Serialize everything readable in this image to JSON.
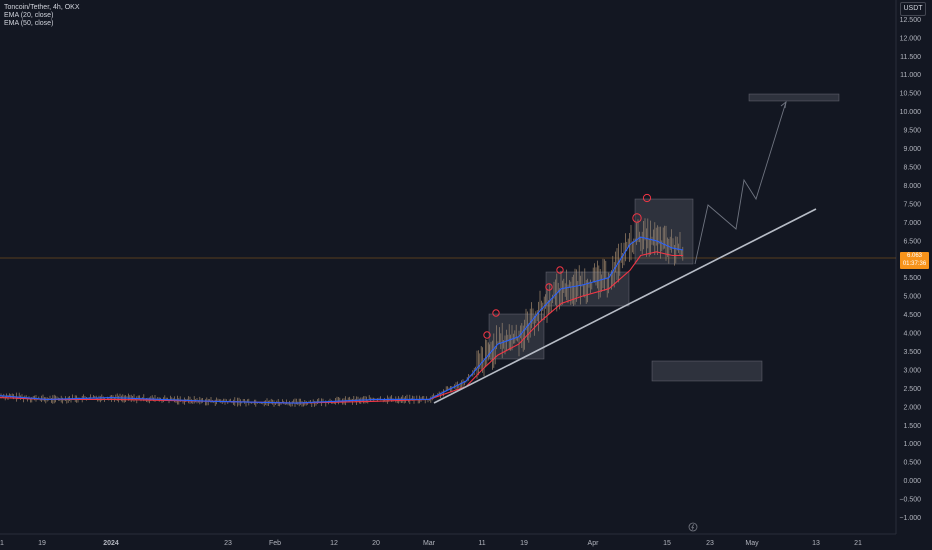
{
  "legend": {
    "symbol": "Toncoin/Tether, 4h, OKX",
    "ema20": "EMA (20, close)",
    "ema50": "EMA (50, close)"
  },
  "currency_button": "USDT",
  "price_tag": {
    "price": "6.063",
    "countdown": "01:37:36"
  },
  "colors": {
    "background": "#131722",
    "candle": "#a0866a",
    "ema20": "#2962ff",
    "ema50": "#f23645",
    "trendline": "#b7bcc6",
    "box": "#787b86",
    "circle": "#f23645",
    "projection": "#6f7480",
    "price_line": "#f7931a"
  },
  "chart_data": {
    "type": "line",
    "y_axis": {
      "min": -1.0,
      "max": 12.5,
      "tick_labels": [
        "12.500",
        "12.000",
        "11.500",
        "11.000",
        "10.500",
        "10.000",
        "9.500",
        "9.000",
        "8.500",
        "8.000",
        "7.500",
        "7.000",
        "6.500",
        "6.000",
        "5.500",
        "5.000",
        "4.500",
        "4.000",
        "3.500",
        "3.000",
        "2.500",
        "2.000",
        "1.500",
        "1.000",
        "0.500",
        "0.000",
        "−0.500",
        "−1.000"
      ]
    },
    "x_axis": {
      "tick_labels": [
        "1",
        "19",
        "2024",
        "23",
        "Feb",
        "12",
        "20",
        "Mar",
        "11",
        "19",
        "Apr",
        "15",
        "23",
        "May",
        "13",
        "21"
      ]
    },
    "series": [
      {
        "name": "EMA (20, close)",
        "x": [
          "2023-12-01",
          "2023-12-20",
          "2024-01-01",
          "2024-01-20",
          "2024-02-05",
          "2024-02-20",
          "2024-03-01",
          "2024-03-08",
          "2024-03-11",
          "2024-03-14",
          "2024-03-18",
          "2024-03-22",
          "2024-03-26",
          "2024-03-30",
          "2024-04-04",
          "2024-04-08",
          "2024-04-10",
          "2024-04-13",
          "2024-04-16",
          "2024-04-18"
        ],
        "values": [
          2.3,
          2.2,
          2.25,
          2.15,
          2.1,
          2.2,
          2.2,
          2.7,
          3.2,
          3.7,
          3.9,
          4.6,
          5.2,
          5.3,
          5.5,
          6.4,
          6.6,
          6.5,
          6.3,
          6.25
        ]
      },
      {
        "name": "EMA (50, close)",
        "x": [
          "2023-12-01",
          "2023-12-20",
          "2024-01-01",
          "2024-01-20",
          "2024-02-05",
          "2024-02-20",
          "2024-03-01",
          "2024-03-08",
          "2024-03-11",
          "2024-03-14",
          "2024-03-18",
          "2024-03-22",
          "2024-03-26",
          "2024-03-30",
          "2024-04-04",
          "2024-04-08",
          "2024-04-10",
          "2024-04-13",
          "2024-04-16",
          "2024-04-18"
        ],
        "values": [
          2.25,
          2.2,
          2.2,
          2.15,
          2.1,
          2.15,
          2.2,
          2.55,
          3.0,
          3.4,
          3.7,
          4.3,
          4.8,
          5.0,
          5.2,
          5.7,
          6.1,
          6.2,
          6.1,
          6.1
        ]
      }
    ],
    "last_price": 6.063
  }
}
